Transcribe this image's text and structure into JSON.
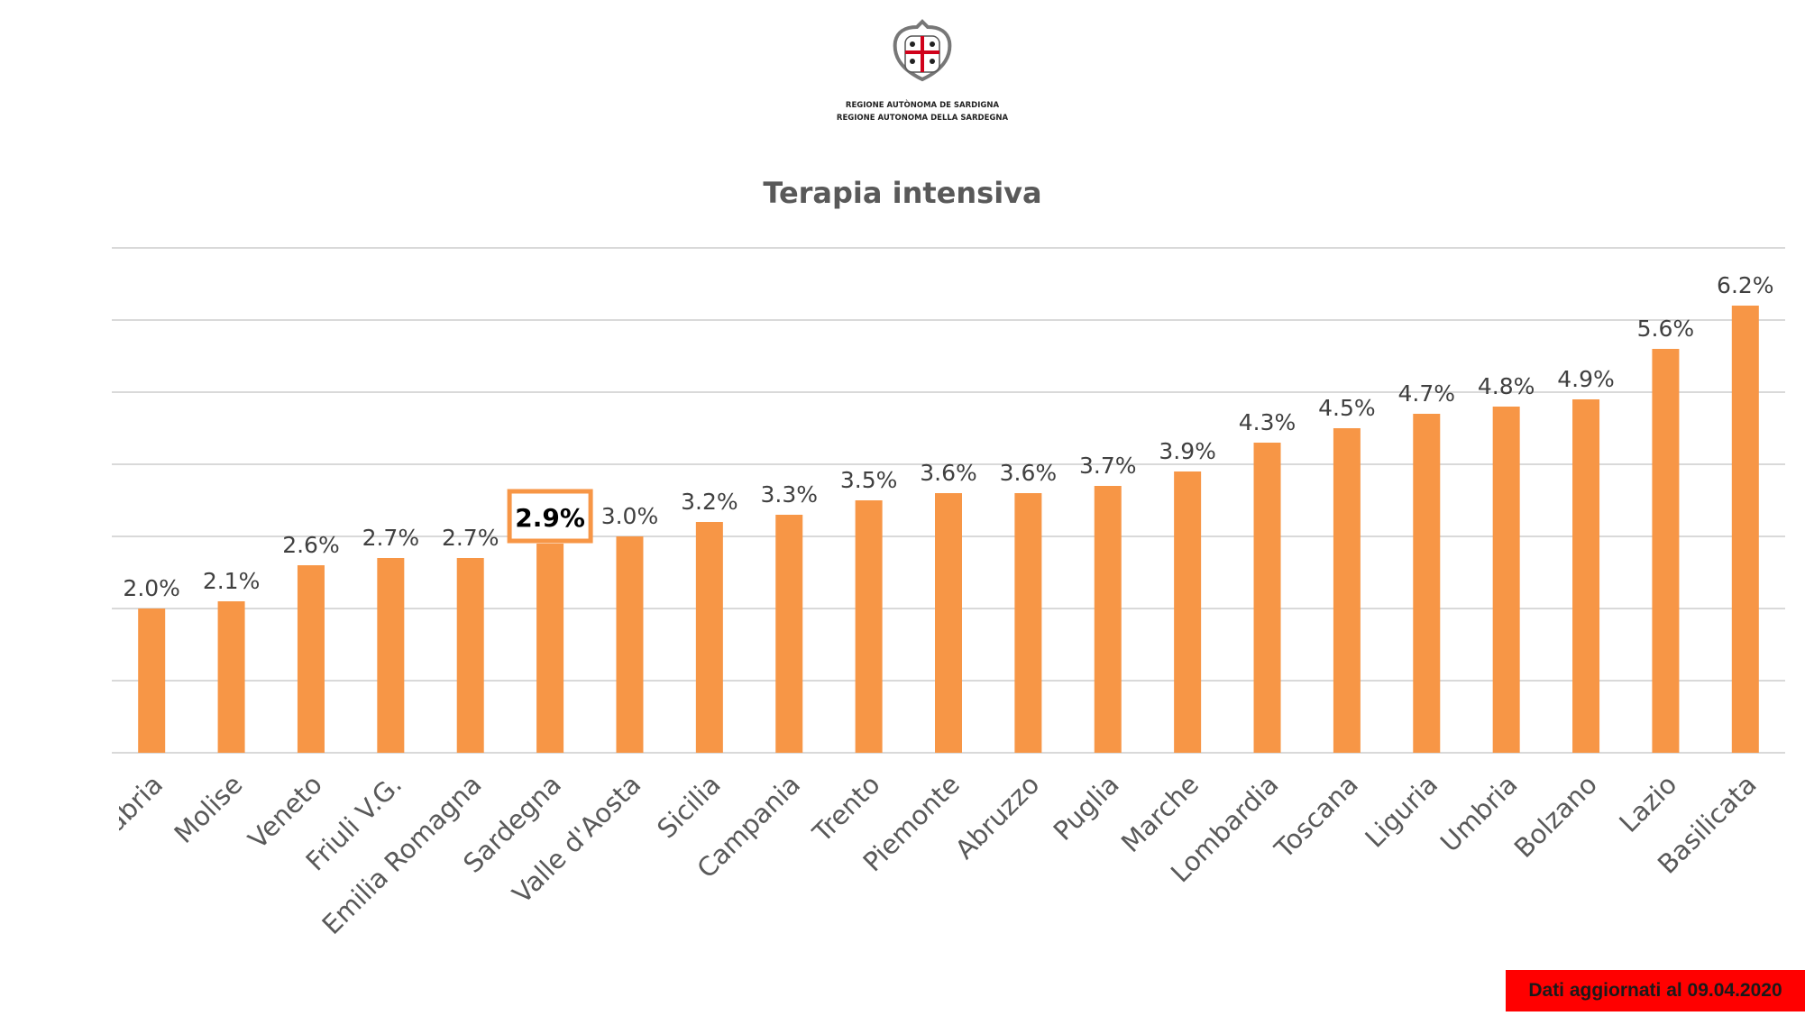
{
  "logo": {
    "line1": "REGIONE AUTÒNOMA DE SARDIGNA",
    "line2": "REGIONE AUTONOMA DELLA SARDEGNA"
  },
  "update_note": "Dati aggiornati al 09.04.2020",
  "colors": {
    "bar": "#f79646",
    "highlight_border": "#f79646",
    "grid": "#d9d9d9",
    "note_bg": "#ff0000"
  },
  "chart_data": {
    "type": "bar",
    "title": "Terapia intensiva",
    "xlabel": "",
    "ylabel": "",
    "ylim": [
      0,
      7
    ],
    "grid": true,
    "highlight": "Sardegna",
    "categories": [
      "Calabria",
      "Molise",
      "Veneto",
      "Friuli V.G.",
      "Emilia Romagna",
      "Sardegna",
      "Valle d'Aosta",
      "Sicilia",
      "Campania",
      "Trento",
      "Piemonte",
      "Abruzzo",
      "Puglia",
      "Marche",
      "Lombardia",
      "Toscana",
      "Liguria",
      "Umbria",
      "Bolzano",
      "Lazio",
      "Basilicata"
    ],
    "values": [
      2.0,
      2.1,
      2.6,
      2.7,
      2.7,
      2.9,
      3.0,
      3.2,
      3.3,
      3.5,
      3.6,
      3.6,
      3.7,
      3.9,
      4.3,
      4.5,
      4.7,
      4.8,
      4.9,
      5.6,
      6.2
    ],
    "labels": [
      "2.0%",
      "2.1%",
      "2.6%",
      "2.7%",
      "2.7%",
      "2.9%",
      "3.0%",
      "3.2%",
      "3.3%",
      "3.5%",
      "3.6%",
      "3.6%",
      "3.7%",
      "3.9%",
      "4.3%",
      "4.5%",
      "4.7%",
      "4.8%",
      "4.9%",
      "5.6%",
      "6.2%"
    ]
  }
}
